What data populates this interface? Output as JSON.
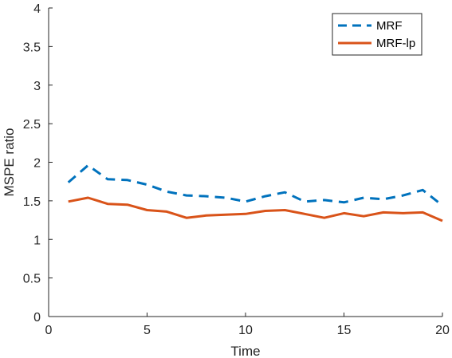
{
  "chart_data": {
    "type": "line",
    "xlabel": "Time",
    "ylabel": "MSPE ratio",
    "xlim": [
      0,
      20
    ],
    "ylim": [
      0,
      4
    ],
    "xticks": [
      0,
      5,
      10,
      15,
      20
    ],
    "yticks": [
      0,
      0.5,
      1,
      1.5,
      2,
      2.5,
      3,
      3.5,
      4
    ],
    "xtick_labels": [
      "0",
      "5",
      "10",
      "15",
      "20"
    ],
    "ytick_labels": [
      "0",
      "0.5",
      "1",
      "1.5",
      "2",
      "2.5",
      "3",
      "3.5",
      "4"
    ],
    "grid": false,
    "legend_position": "top-right",
    "x": [
      1,
      2,
      3,
      4,
      5,
      6,
      7,
      8,
      9,
      10,
      11,
      12,
      13,
      14,
      15,
      16,
      17,
      18,
      19,
      20
    ],
    "series": [
      {
        "name": "MRF",
        "style": "dashed",
        "color": "#0072BD",
        "values": [
          1.74,
          1.96,
          1.78,
          1.77,
          1.71,
          1.62,
          1.57,
          1.56,
          1.54,
          1.49,
          1.56,
          1.61,
          1.49,
          1.51,
          1.48,
          1.54,
          1.52,
          1.57,
          1.64,
          1.44
        ]
      },
      {
        "name": "MRF-lp",
        "style": "solid",
        "color": "#D95319",
        "values": [
          1.49,
          1.54,
          1.46,
          1.45,
          1.38,
          1.36,
          1.28,
          1.31,
          1.32,
          1.33,
          1.37,
          1.38,
          1.33,
          1.28,
          1.34,
          1.3,
          1.35,
          1.34,
          1.35,
          1.24
        ]
      }
    ]
  }
}
